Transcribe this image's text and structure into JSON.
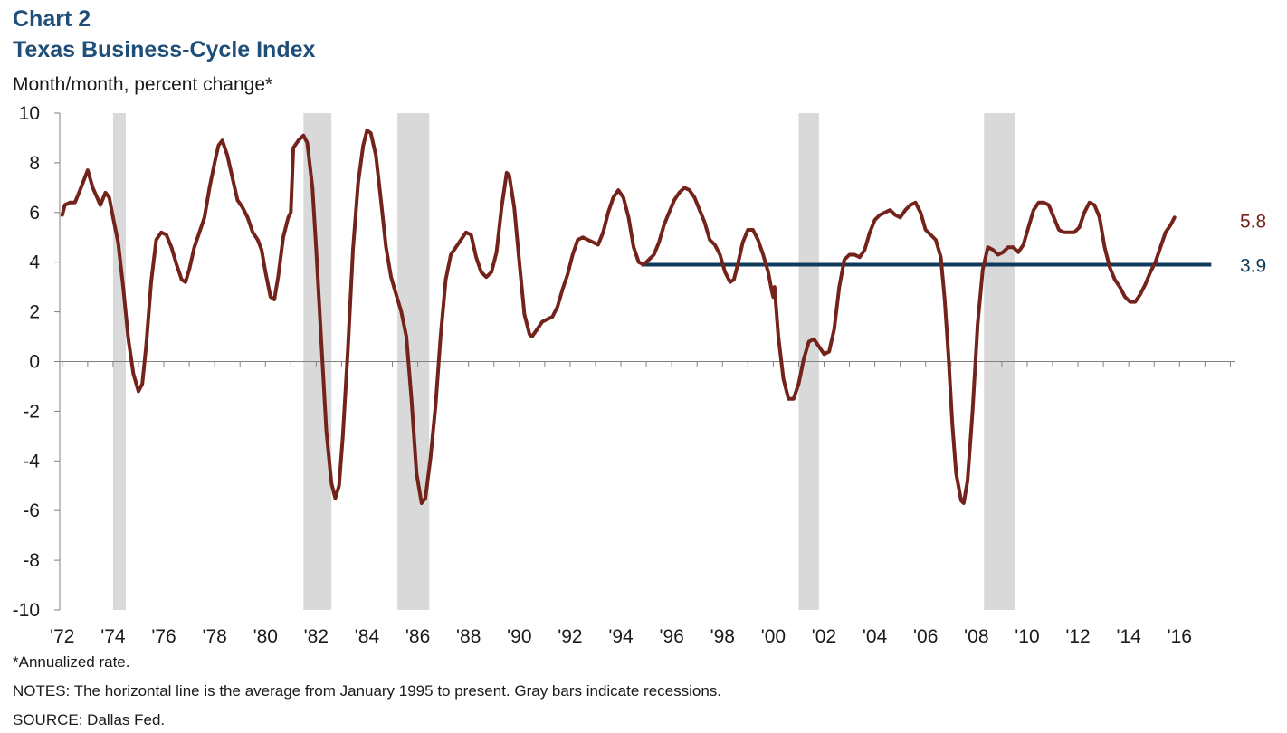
{
  "header": {
    "chart_number": "Chart 2",
    "title": "Texas Business-Cycle Index",
    "subtitle": "Month/month, percent change*"
  },
  "footer": {
    "footnote": "*Annualized  rate.",
    "notes": "NOTES: The horizontal line is the average from January 1995 to present. Gray bars indicate recessions.",
    "source": "SOURCE:  Dallas Fed."
  },
  "colors": {
    "series": "#74231b",
    "average": "#0e3a5c",
    "recession": "#d9d9d9",
    "title": "#1f4e79"
  },
  "chart_data": {
    "type": "line",
    "title": "Texas Business-Cycle Index",
    "ylabel": "Month/month, percent change*",
    "xlabel": "",
    "ylim": [
      -10,
      10
    ],
    "xlim": [
      1971.9,
      2018.2
    ],
    "y_ticks": [
      10,
      8,
      6,
      4,
      2,
      0,
      -2,
      -4,
      -6,
      -8,
      -10
    ],
    "x_ticks": [
      {
        "year": 1972,
        "label": "'72"
      },
      {
        "year": 1974,
        "label": "'74"
      },
      {
        "year": 1976,
        "label": "'76"
      },
      {
        "year": 1978,
        "label": "'78"
      },
      {
        "year": 1980,
        "label": "'80"
      },
      {
        "year": 1982,
        "label": "'82"
      },
      {
        "year": 1984,
        "label": "'84"
      },
      {
        "year": 1986,
        "label": "'86"
      },
      {
        "year": 1988,
        "label": "'88"
      },
      {
        "year": 1990,
        "label": "'90"
      },
      {
        "year": 1992,
        "label": "'92"
      },
      {
        "year": 1994,
        "label": "'94"
      },
      {
        "year": 1996,
        "label": "'96"
      },
      {
        "year": 1998,
        "label": "'98"
      },
      {
        "year": 2000,
        "label": "'00"
      },
      {
        "year": 2002,
        "label": "'02"
      },
      {
        "year": 2004,
        "label": "'04"
      },
      {
        "year": 2006,
        "label": "'06"
      },
      {
        "year": 2008,
        "label": "'08"
      },
      {
        "year": 2010,
        "label": "'10"
      },
      {
        "year": 2012,
        "label": "'12"
      },
      {
        "year": 2014,
        "label": "'14"
      },
      {
        "year": 2016,
        "label": "'16"
      }
    ],
    "recessions": [
      {
        "start": 1974.0,
        "end": 1974.5
      },
      {
        "start": 1981.5,
        "end": 1982.6
      },
      {
        "start": 1985.2,
        "end": 1986.45
      },
      {
        "start": 2001.0,
        "end": 2001.8
      },
      {
        "start": 2008.3,
        "end": 2009.5
      }
    ],
    "series": [
      {
        "points": [
          [
            1972.0,
            5.9
          ],
          [
            1972.1,
            6.3
          ],
          [
            1972.3,
            6.4
          ],
          [
            1972.5,
            6.4
          ],
          [
            1972.7,
            6.9
          ],
          [
            1973.0,
            7.7
          ],
          [
            1973.2,
            7.0
          ],
          [
            1973.5,
            6.3
          ],
          [
            1973.7,
            6.8
          ],
          [
            1973.85,
            6.6
          ],
          [
            1974.0,
            5.8
          ],
          [
            1974.2,
            4.8
          ],
          [
            1974.4,
            3.0
          ],
          [
            1974.6,
            0.9
          ],
          [
            1974.8,
            -0.5
          ],
          [
            1975.0,
            -1.2
          ],
          [
            1975.15,
            -0.9
          ],
          [
            1975.3,
            0.6
          ],
          [
            1975.5,
            3.2
          ],
          [
            1975.7,
            4.9
          ],
          [
            1975.9,
            5.2
          ],
          [
            1976.1,
            5.1
          ],
          [
            1976.3,
            4.6
          ],
          [
            1976.5,
            3.9
          ],
          [
            1976.7,
            3.3
          ],
          [
            1976.85,
            3.2
          ],
          [
            1977.0,
            3.7
          ],
          [
            1977.2,
            4.6
          ],
          [
            1977.4,
            5.2
          ],
          [
            1977.6,
            5.8
          ],
          [
            1977.8,
            7.0
          ],
          [
            1978.0,
            8.0
          ],
          [
            1978.15,
            8.7
          ],
          [
            1978.3,
            8.9
          ],
          [
            1978.5,
            8.3
          ],
          [
            1978.7,
            7.4
          ],
          [
            1978.9,
            6.5
          ],
          [
            1979.1,
            6.2
          ],
          [
            1979.3,
            5.8
          ],
          [
            1979.5,
            5.2
          ],
          [
            1979.7,
            4.9
          ],
          [
            1979.85,
            4.5
          ],
          [
            1980.0,
            3.6
          ],
          [
            1980.2,
            2.6
          ],
          [
            1980.35,
            2.5
          ],
          [
            1980.5,
            3.4
          ],
          [
            1980.7,
            5.0
          ],
          [
            1980.9,
            5.8
          ],
          [
            1981.0,
            6.0
          ],
          [
            1981.1,
            8.6
          ],
          [
            1981.3,
            8.9
          ],
          [
            1981.5,
            9.1
          ],
          [
            1981.65,
            8.8
          ],
          [
            1981.85,
            7.0
          ],
          [
            1982.0,
            4.5
          ],
          [
            1982.2,
            0.8
          ],
          [
            1982.4,
            -2.8
          ],
          [
            1982.6,
            -4.9
          ],
          [
            1982.75,
            -5.5
          ],
          [
            1982.9,
            -5.0
          ],
          [
            1983.05,
            -3.0
          ],
          [
            1983.25,
            0.5
          ],
          [
            1983.45,
            4.5
          ],
          [
            1983.65,
            7.2
          ],
          [
            1983.85,
            8.7
          ],
          [
            1984.0,
            9.3
          ],
          [
            1984.15,
            9.2
          ],
          [
            1984.35,
            8.3
          ],
          [
            1984.55,
            6.5
          ],
          [
            1984.75,
            4.6
          ],
          [
            1984.95,
            3.4
          ],
          [
            1985.15,
            2.7
          ],
          [
            1985.35,
            2.0
          ],
          [
            1985.55,
            1.0
          ],
          [
            1985.75,
            -1.5
          ],
          [
            1985.95,
            -4.5
          ],
          [
            1986.15,
            -5.7
          ],
          [
            1986.3,
            -5.5
          ],
          [
            1986.5,
            -3.9
          ],
          [
            1986.7,
            -1.8
          ],
          [
            1986.9,
            1.0
          ],
          [
            1987.1,
            3.3
          ],
          [
            1987.3,
            4.3
          ],
          [
            1987.5,
            4.6
          ],
          [
            1987.7,
            4.9
          ],
          [
            1987.9,
            5.2
          ],
          [
            1988.1,
            5.1
          ],
          [
            1988.3,
            4.2
          ],
          [
            1988.5,
            3.6
          ],
          [
            1988.7,
            3.4
          ],
          [
            1988.9,
            3.6
          ],
          [
            1989.1,
            4.4
          ],
          [
            1989.3,
            6.2
          ],
          [
            1989.5,
            7.6
          ],
          [
            1989.6,
            7.5
          ],
          [
            1989.8,
            6.2
          ],
          [
            1990.0,
            4.0
          ],
          [
            1990.2,
            1.9
          ],
          [
            1990.4,
            1.1
          ],
          [
            1990.5,
            1.0
          ],
          [
            1990.7,
            1.3
          ],
          [
            1990.9,
            1.6
          ],
          [
            1991.1,
            1.7
          ],
          [
            1991.3,
            1.8
          ],
          [
            1991.5,
            2.2
          ],
          [
            1991.7,
            2.9
          ],
          [
            1991.9,
            3.5
          ],
          [
            1992.1,
            4.3
          ],
          [
            1992.3,
            4.9
          ],
          [
            1992.5,
            5.0
          ],
          [
            1992.7,
            4.9
          ],
          [
            1992.9,
            4.8
          ],
          [
            1993.1,
            4.7
          ],
          [
            1993.3,
            5.2
          ],
          [
            1993.5,
            6.0
          ],
          [
            1993.7,
            6.6
          ],
          [
            1993.9,
            6.9
          ],
          [
            1994.1,
            6.6
          ],
          [
            1994.3,
            5.8
          ],
          [
            1994.5,
            4.6
          ],
          [
            1994.7,
            4.0
          ],
          [
            1994.9,
            3.9
          ],
          [
            1995.1,
            4.1
          ],
          [
            1995.3,
            4.3
          ],
          [
            1995.5,
            4.8
          ],
          [
            1995.7,
            5.5
          ],
          [
            1995.9,
            6.0
          ],
          [
            1996.1,
            6.5
          ],
          [
            1996.3,
            6.8
          ],
          [
            1996.5,
            7.0
          ],
          [
            1996.7,
            6.9
          ],
          [
            1996.9,
            6.6
          ],
          [
            1997.1,
            6.1
          ],
          [
            1997.3,
            5.6
          ],
          [
            1997.5,
            4.9
          ],
          [
            1997.7,
            4.7
          ],
          [
            1997.9,
            4.3
          ],
          [
            1998.1,
            3.6
          ],
          [
            1998.3,
            3.2
          ],
          [
            1998.45,
            3.3
          ],
          [
            1998.6,
            3.9
          ],
          [
            1998.8,
            4.8
          ],
          [
            1999.0,
            5.3
          ],
          [
            1999.2,
            5.3
          ],
          [
            1999.4,
            4.9
          ],
          [
            1999.6,
            4.3
          ],
          [
            1999.8,
            3.6
          ],
          [
            1999.95,
            2.8
          ],
          [
            2000.0,
            2.6
          ],
          [
            2000.05,
            3.0
          ],
          [
            2000.2,
            1.0
          ],
          [
            2000.4,
            -0.7
          ],
          [
            2000.6,
            -1.5
          ],
          [
            2000.8,
            -1.5
          ],
          [
            2001.0,
            -0.9
          ],
          [
            2001.2,
            0.1
          ],
          [
            2001.4,
            0.8
          ],
          [
            2001.6,
            0.9
          ],
          [
            2001.8,
            0.6
          ],
          [
            2002.0,
            0.3
          ],
          [
            2002.2,
            0.4
          ],
          [
            2002.4,
            1.3
          ],
          [
            2002.6,
            3.0
          ],
          [
            2002.8,
            4.1
          ],
          [
            2003.0,
            4.3
          ],
          [
            2003.2,
            4.3
          ],
          [
            2003.4,
            4.2
          ],
          [
            2003.6,
            4.5
          ],
          [
            2003.8,
            5.2
          ],
          [
            2004.0,
            5.7
          ],
          [
            2004.2,
            5.9
          ],
          [
            2004.4,
            6.0
          ],
          [
            2004.6,
            6.1
          ],
          [
            2004.8,
            5.9
          ],
          [
            2005.0,
            5.8
          ],
          [
            2005.2,
            6.1
          ],
          [
            2005.4,
            6.3
          ],
          [
            2005.6,
            6.4
          ],
          [
            2005.8,
            6.0
          ],
          [
            2006.0,
            5.3
          ],
          [
            2006.2,
            5.1
          ],
          [
            2006.4,
            4.9
          ],
          [
            2006.6,
            4.2
          ],
          [
            2006.75,
            2.5
          ],
          [
            2006.9,
            0.2
          ],
          [
            2007.05,
            -2.5
          ],
          [
            2007.2,
            -4.5
          ],
          [
            2007.4,
            -5.6
          ],
          [
            2007.5,
            -5.7
          ],
          [
            2007.65,
            -4.8
          ],
          [
            2007.85,
            -2.0
          ],
          [
            2008.05,
            1.5
          ],
          [
            2008.25,
            3.7
          ],
          [
            2008.45,
            4.6
          ],
          [
            2008.65,
            4.5
          ],
          [
            2008.85,
            4.3
          ],
          [
            2009.05,
            4.4
          ],
          [
            2009.25,
            4.6
          ],
          [
            2009.45,
            4.6
          ],
          [
            2009.65,
            4.4
          ],
          [
            2009.85,
            4.7
          ],
          [
            2010.05,
            5.4
          ],
          [
            2010.25,
            6.1
          ],
          [
            2010.45,
            6.4
          ],
          [
            2010.65,
            6.4
          ],
          [
            2010.85,
            6.3
          ],
          [
            2011.05,
            5.8
          ],
          [
            2011.25,
            5.3
          ],
          [
            2011.45,
            5.2
          ],
          [
            2011.65,
            5.2
          ],
          [
            2011.85,
            5.2
          ],
          [
            2012.05,
            5.4
          ],
          [
            2012.25,
            6.0
          ],
          [
            2012.45,
            6.4
          ],
          [
            2012.65,
            6.3
          ],
          [
            2012.85,
            5.8
          ],
          [
            2013.05,
            4.6
          ],
          [
            2013.25,
            3.8
          ],
          [
            2013.45,
            3.3
          ],
          [
            2013.65,
            3.0
          ],
          [
            2013.85,
            2.6
          ],
          [
            2014.05,
            2.4
          ],
          [
            2014.25,
            2.4
          ],
          [
            2014.45,
            2.7
          ],
          [
            2014.65,
            3.1
          ],
          [
            2014.85,
            3.6
          ],
          [
            2015.05,
            4.0
          ],
          [
            2015.25,
            4.6
          ],
          [
            2015.45,
            5.2
          ],
          [
            2015.65,
            5.5
          ],
          [
            2015.8,
            5.8
          ]
        ]
      }
    ],
    "reference_line": {
      "start": 1994.8,
      "end": 2017.25,
      "value": 3.9
    },
    "annotations": [
      {
        "text": "5.8",
        "value": 5.8
      },
      {
        "text": "3.9",
        "value": 3.9
      }
    ]
  }
}
